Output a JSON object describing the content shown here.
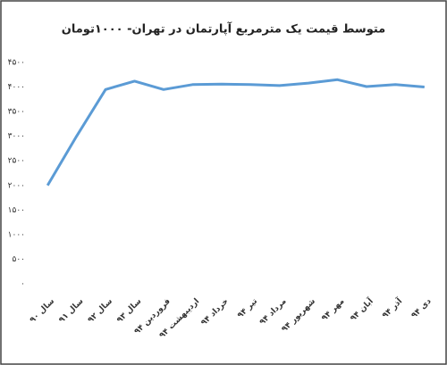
{
  "chart_data": {
    "type": "line",
    "title": "متوسط قیمت یک مترمربع آپارتمان در تهران- ۱۰۰۰تومان",
    "categories": [
      "سال ۹۰",
      "سال ۹۱",
      "سال ۹۲",
      "سال ۹۳",
      "فروردین ۹۴",
      "اردیبهشت ۹۴",
      "خرداد ۹۴",
      "تیر ۹۴",
      "مرداد ۹۴",
      "شهریور ۹۴",
      "مهر ۹۴",
      "آبان ۹۴",
      "آذر ۹۴",
      "دی ۹۴"
    ],
    "values": [
      2000,
      3000,
      3950,
      4120,
      3950,
      4050,
      4060,
      4050,
      4030,
      4080,
      4150,
      4010,
      4050,
      4000
    ],
    "color": "#5b9bd5",
    "ylim": [
      0,
      4500
    ],
    "yticks": [
      {
        "value": 0,
        "label": "۰"
      },
      {
        "value": 500,
        "label": "۵۰۰"
      },
      {
        "value": 1000,
        "label": "۱۰۰۰"
      },
      {
        "value": 1500,
        "label": "۱۵۰۰"
      },
      {
        "value": 2000,
        "label": "۲۰۰۰"
      },
      {
        "value": 2500,
        "label": "۲۵۰۰"
      },
      {
        "value": 3000,
        "label": "۳۰۰۰"
      },
      {
        "value": 3500,
        "label": "۳۵۰۰"
      },
      {
        "value": 4000,
        "label": "۴۰۰۰"
      },
      {
        "value": 4500,
        "label": "۴۵۰۰"
      }
    ]
  }
}
